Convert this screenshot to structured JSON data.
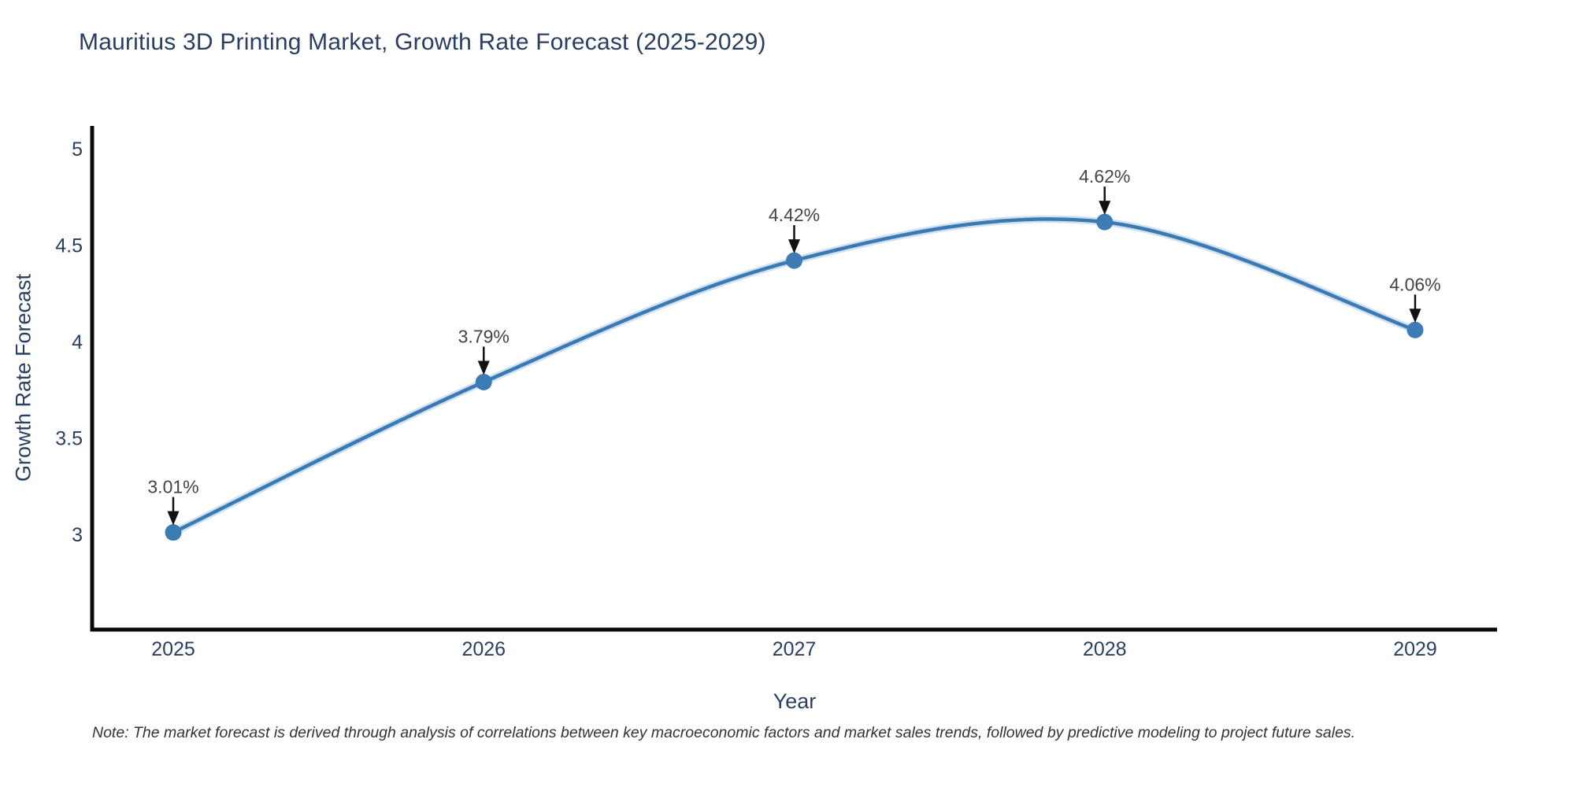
{
  "chart_data": {
    "type": "line",
    "title": "Mauritius 3D Printing Market, Growth Rate Forecast (2025-2029)",
    "xlabel": "Year",
    "ylabel": "Growth Rate Forecast",
    "x": [
      2025,
      2026,
      2027,
      2028,
      2029
    ],
    "series": [
      {
        "name": "Growth Rate Forecast",
        "values": [
          3.01,
          3.79,
          4.42,
          4.62,
          4.06
        ]
      }
    ],
    "point_labels": [
      "3.01%",
      "3.79%",
      "4.42%",
      "4.62%",
      "4.06%"
    ],
    "xtick_labels": [
      "2025",
      "2026",
      "2027",
      "2028",
      "2029"
    ],
    "ytick_values": [
      3,
      3.5,
      4,
      4.5,
      5
    ],
    "ytick_labels": [
      "3",
      "3.5",
      "4",
      "4.5",
      "5"
    ],
    "ylim": [
      2.5,
      5.11
    ],
    "xlim": [
      2024.74,
      2029.26
    ],
    "grid": false,
    "legend_position": "none",
    "line_shape": "spline",
    "annotation_style": "label-with-down-arrow",
    "note": "Note: The market forecast is derived through analysis of correlations between key macroeconomic factors and market sales trends, followed by predictive modeling to project future sales.",
    "colors": {
      "background": "#ffffff",
      "line": "#3a79b2",
      "line_halo": "#aecde8",
      "marker": "#3c7bb4",
      "axis_line": "#0a0a0a",
      "axis_text": "#2a3f5f",
      "title_text": "#2a3f5f",
      "annotation_text": "#444444",
      "arrow": "#111111",
      "note_text": "#333333"
    }
  }
}
